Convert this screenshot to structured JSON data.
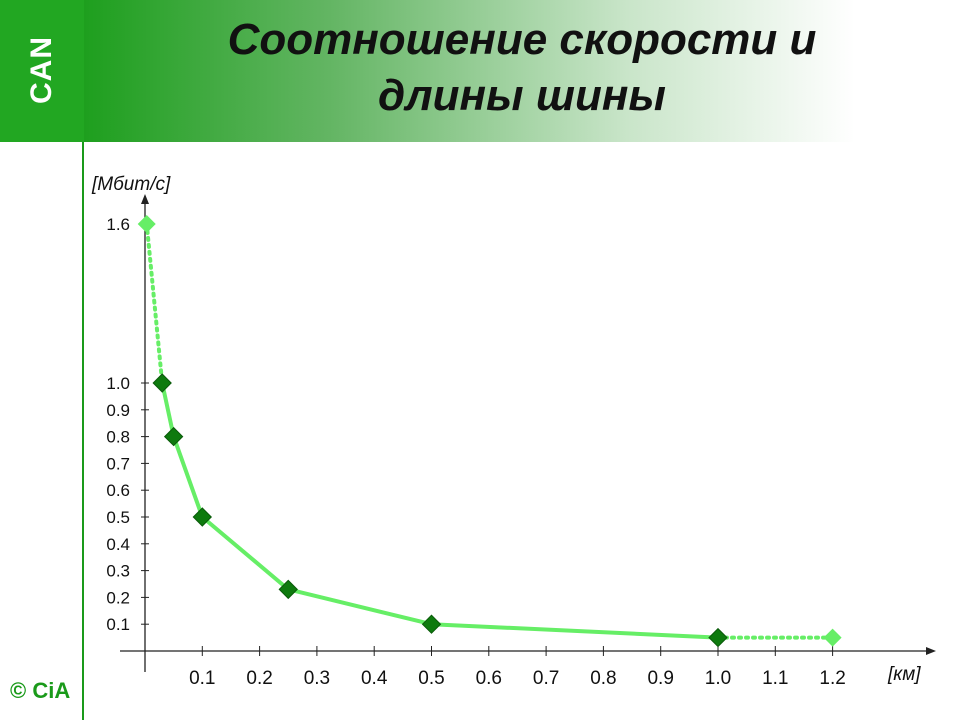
{
  "header": {
    "title_line1": "Соотношение скорости и",
    "title_line2": "длины шины"
  },
  "logo": {
    "text": "CAN"
  },
  "footer": {
    "copyright": "© CiA"
  },
  "colors": {
    "header_green": "#1e9f1e",
    "line_green": "#66ee66",
    "marker_dark": "#0e7a0e",
    "marker_light": "#66ee66"
  },
  "chart_data": {
    "type": "line",
    "title": "",
    "xlabel": "[км]",
    "ylabel": "[Мбит/с]",
    "x_ticks": [
      "0.1",
      "0.2",
      "0.3",
      "0.4",
      "0.5",
      "0.6",
      "0.7",
      "0.8",
      "0.9",
      "1.0",
      "1.1",
      "1.2"
    ],
    "y_ticks": [
      "0.1",
      "0.2",
      "0.3",
      "0.4",
      "0.5",
      "0.6",
      "0.7",
      "0.8",
      "0.9",
      "1.0",
      "1.6"
    ],
    "series": [
      {
        "x": [
          0.003,
          0.03,
          0.05,
          0.1,
          0.25,
          0.5,
          1.0,
          1.2
        ],
        "y": [
          1.6,
          1.0,
          0.8,
          0.5,
          0.23,
          0.1,
          0.05,
          0.05
        ],
        "segment_style": [
          "dotted",
          "solid",
          "solid",
          "solid",
          "solid",
          "solid",
          "dotted"
        ],
        "marker_style": [
          "light",
          "dark",
          "dark",
          "dark",
          "dark",
          "dark",
          "dark",
          "light"
        ]
      }
    ],
    "grid": false,
    "legend": "none"
  }
}
